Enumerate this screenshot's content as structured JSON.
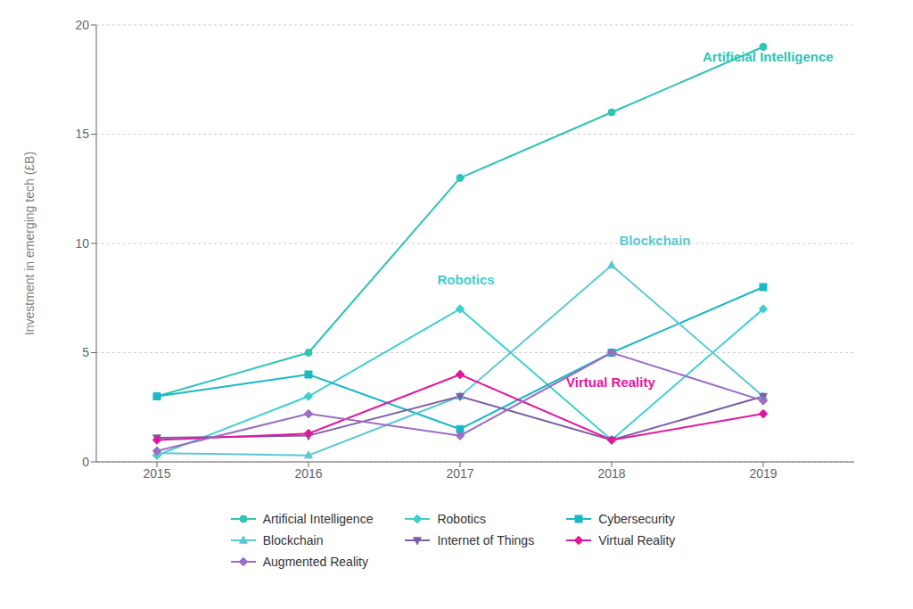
{
  "chart_data": {
    "type": "line",
    "x": [
      2015,
      2016,
      2017,
      2018,
      2019
    ],
    "xlim": [
      2014.6,
      2019.6
    ],
    "xticks": [
      2015,
      2016,
      2017,
      2018,
      2019
    ],
    "ylim": [
      0,
      20
    ],
    "yticks": [
      0,
      5,
      10,
      15,
      20
    ],
    "ylabel": "Investment in emerging tech (£B)",
    "grid": "y",
    "legend": "bottom",
    "series": [
      {
        "name": "Artificial Intelligence",
        "color": "#2ec4b6",
        "marker": "circle",
        "values": [
          3.0,
          5.0,
          13.0,
          16.0,
          19.0
        ]
      },
      {
        "name": "Robotics",
        "color": "#3ecfcf",
        "marker": "diamond",
        "values": [
          0.3,
          3.0,
          7.0,
          1.0,
          7.0
        ]
      },
      {
        "name": "Cybersecurity",
        "color": "#1ab8c4",
        "marker": "square",
        "values": [
          3.0,
          4.0,
          1.5,
          5.0,
          8.0
        ]
      },
      {
        "name": "Blockchain",
        "color": "#5bc8d4",
        "marker": "triangle-up",
        "values": [
          0.4,
          0.3,
          3.0,
          9.0,
          3.0
        ]
      },
      {
        "name": "Internet of Things",
        "color": "#7b5ea7",
        "marker": "triangle-down",
        "values": [
          1.1,
          1.2,
          3.0,
          1.0,
          3.0
        ]
      },
      {
        "name": "Virtual Reality",
        "color": "#e0189e",
        "marker": "diamond",
        "values": [
          1.0,
          1.3,
          4.0,
          1.0,
          2.2
        ]
      },
      {
        "name": "Augmented Reality",
        "color": "#9b6dc4",
        "marker": "diamond",
        "values": [
          0.5,
          2.2,
          1.2,
          5.0,
          2.8
        ]
      }
    ],
    "annotations": [
      {
        "text": "Artificial Intelligence",
        "x": 2018.6,
        "y": 18.2,
        "color": "#2ec4b6"
      },
      {
        "text": "Robotics",
        "x": 2016.85,
        "y": 8.0,
        "color": "#3ecfcf"
      },
      {
        "text": "Blockchain",
        "x": 2018.05,
        "y": 9.8,
        "color": "#5bc8d4"
      },
      {
        "text": "Virtual Reality",
        "x": 2017.7,
        "y": 3.3,
        "color": "#e0189e"
      }
    ]
  }
}
